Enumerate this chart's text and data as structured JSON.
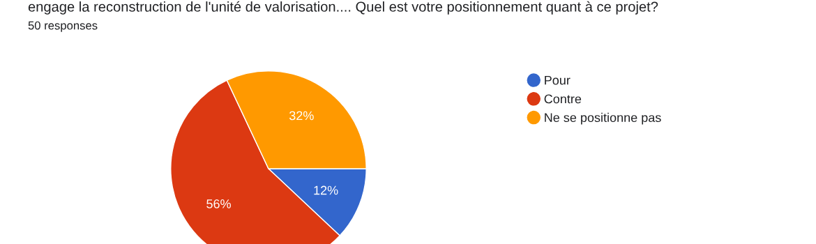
{
  "chart_data": {
    "type": "pie",
    "title": "engage la reconstruction de l'unité de valorisation.... Quel est votre positionnement quant à ce projet?",
    "subtitle": "50 responses",
    "categories": [
      "Pour",
      "Contre",
      "Ne se positionne pas"
    ],
    "values": [
      12,
      56,
      32
    ],
    "colors": [
      "#3366cc",
      "#dc3912",
      "#ff9900"
    ],
    "value_labels": [
      "12%",
      "56%",
      "32%"
    ],
    "legend": "right"
  }
}
